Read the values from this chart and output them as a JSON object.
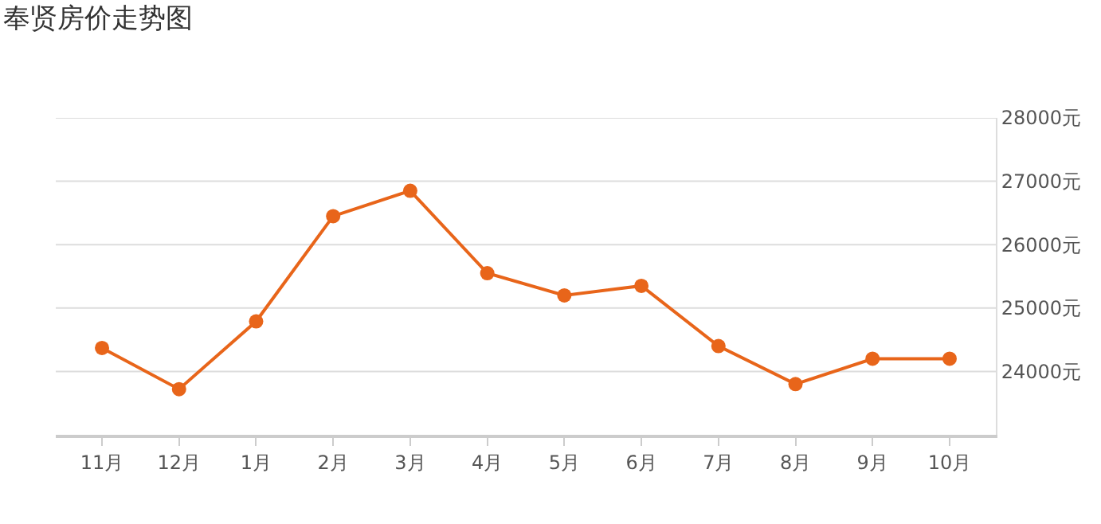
{
  "chart_data": {
    "type": "line",
    "title": "奉贤房价走势图",
    "categories": [
      "11月",
      "12月",
      "1月",
      "2月",
      "3月",
      "4月",
      "5月",
      "6月",
      "7月",
      "8月",
      "9月",
      "10月"
    ],
    "series": [
      {
        "color": "#e8651a",
        "values": [
          24370,
          23720,
          24790,
          26450,
          26850,
          25550,
          25200,
          25350,
          24400,
          23800,
          24200,
          24200
        ]
      }
    ],
    "ylim": [
      23000,
      28000
    ],
    "yticks": [
      {
        "value": 24000,
        "label": "24000元"
      },
      {
        "value": 25000,
        "label": "25000元"
      },
      {
        "value": 26000,
        "label": "26000元"
      },
      {
        "value": 27000,
        "label": "27000元"
      },
      {
        "value": 28000,
        "label": "28000元"
      }
    ],
    "grid": "y",
    "marker": "circle",
    "line_style": "solid"
  }
}
